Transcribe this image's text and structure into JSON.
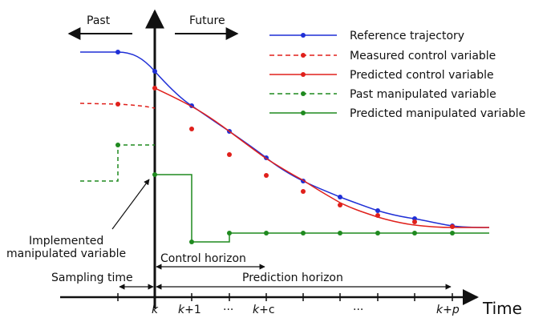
{
  "direction": {
    "past": "Past",
    "future": "Future"
  },
  "legend": [
    {
      "label": "Reference trajectory",
      "color": "#1f2fd6",
      "style": "solid"
    },
    {
      "label": "Measured control variable",
      "color": "#e0201b",
      "style": "dashed"
    },
    {
      "label": "Predicted control variable",
      "color": "#e0201b",
      "style": "solid"
    },
    {
      "label": "Past manipulated variable",
      "color": "#1f8a1f",
      "style": "dashed"
    },
    {
      "label": "Predicted manipulated variable",
      "color": "#1f8a1f",
      "style": "solid"
    }
  ],
  "annotation": {
    "line1": "Implemented",
    "line2": "manipulated variable"
  },
  "horizons": {
    "sampling": "Sampling time",
    "control": "Control horizon",
    "prediction": "Prediction horizon"
  },
  "axis": {
    "x_label": "Time",
    "ticks": {
      "k": "k",
      "k1_var": "k",
      "k1_rest": "+1",
      "dots1": "···",
      "kc_var": "k",
      "kc_rest": "+c",
      "dots2": "···",
      "kp_var": "k",
      "kp_plus": "+",
      "kp_p": "p"
    }
  }
}
